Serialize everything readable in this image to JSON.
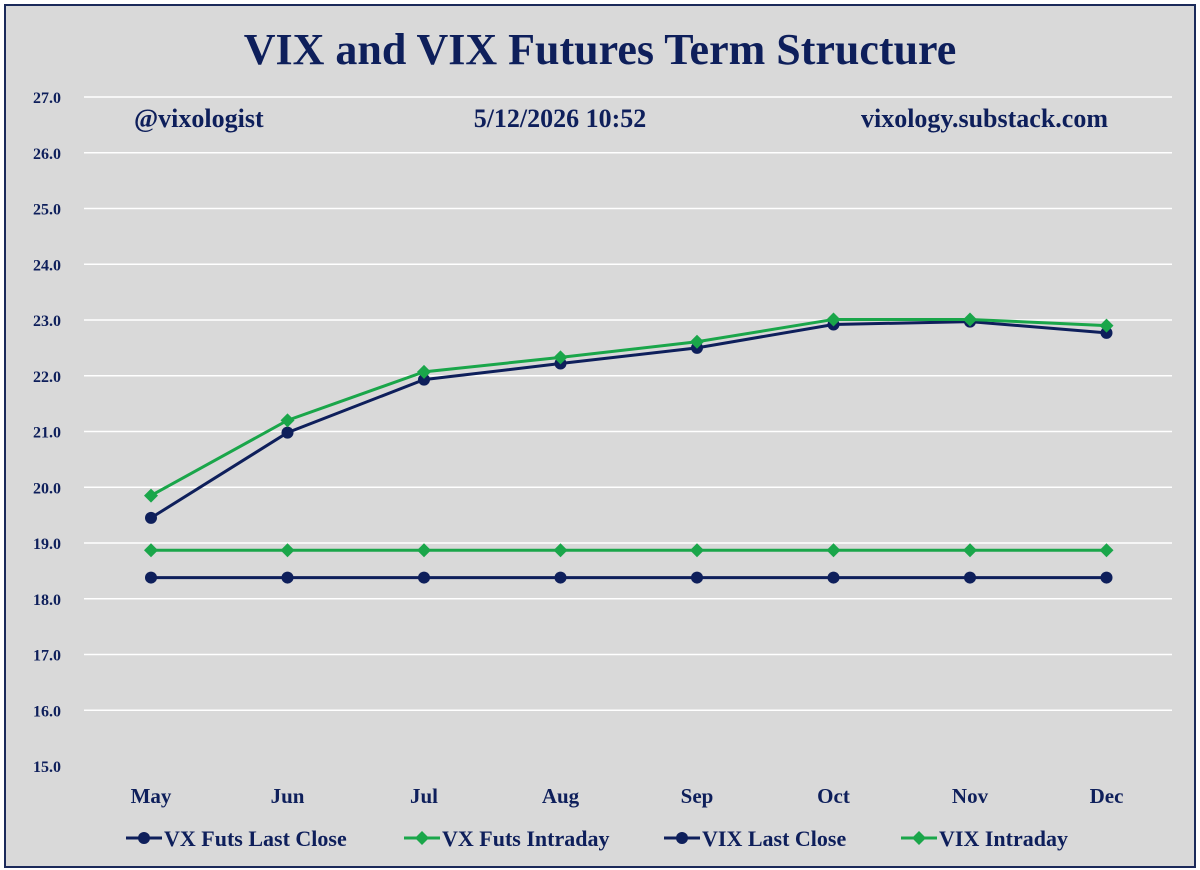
{
  "chart_data": {
    "type": "line",
    "title": "VIX and VIX Futures Term Structure",
    "annotations": {
      "handle": "@vixologist",
      "timestamp": "5/12/2026 10:52",
      "site": "vixology.substack.com"
    },
    "categories": [
      "May",
      "Jun",
      "Jul",
      "Aug",
      "Sep",
      "Oct",
      "Nov",
      "Dec"
    ],
    "ylim": [
      15.0,
      27.0
    ],
    "yticks": [
      "15.0",
      "16.0",
      "17.0",
      "18.0",
      "19.0",
      "20.0",
      "21.0",
      "22.0",
      "23.0",
      "24.0",
      "25.0",
      "26.0",
      "27.0"
    ],
    "grid": true,
    "legend_position": "bottom",
    "series": [
      {
        "name": "VX Futs Last Close",
        "marker": "circle",
        "color": "#0e1f5b",
        "values": [
          19.45,
          20.98,
          21.93,
          22.22,
          22.5,
          22.92,
          22.97,
          22.77
        ]
      },
      {
        "name": "VX Futs Intraday",
        "marker": "diamond",
        "color": "#1aa64a",
        "values": [
          19.85,
          21.2,
          22.07,
          22.33,
          22.61,
          23.01,
          23.01,
          22.9
        ]
      },
      {
        "name": "VIX Last Close",
        "marker": "circle",
        "color": "#0e1f5b",
        "values": [
          18.38,
          18.38,
          18.38,
          18.38,
          18.38,
          18.38,
          18.38,
          18.38
        ]
      },
      {
        "name": "VIX Intraday",
        "marker": "diamond",
        "color": "#1aa64a",
        "values": [
          18.87,
          18.87,
          18.87,
          18.87,
          18.87,
          18.87,
          18.87,
          18.87
        ]
      }
    ]
  }
}
